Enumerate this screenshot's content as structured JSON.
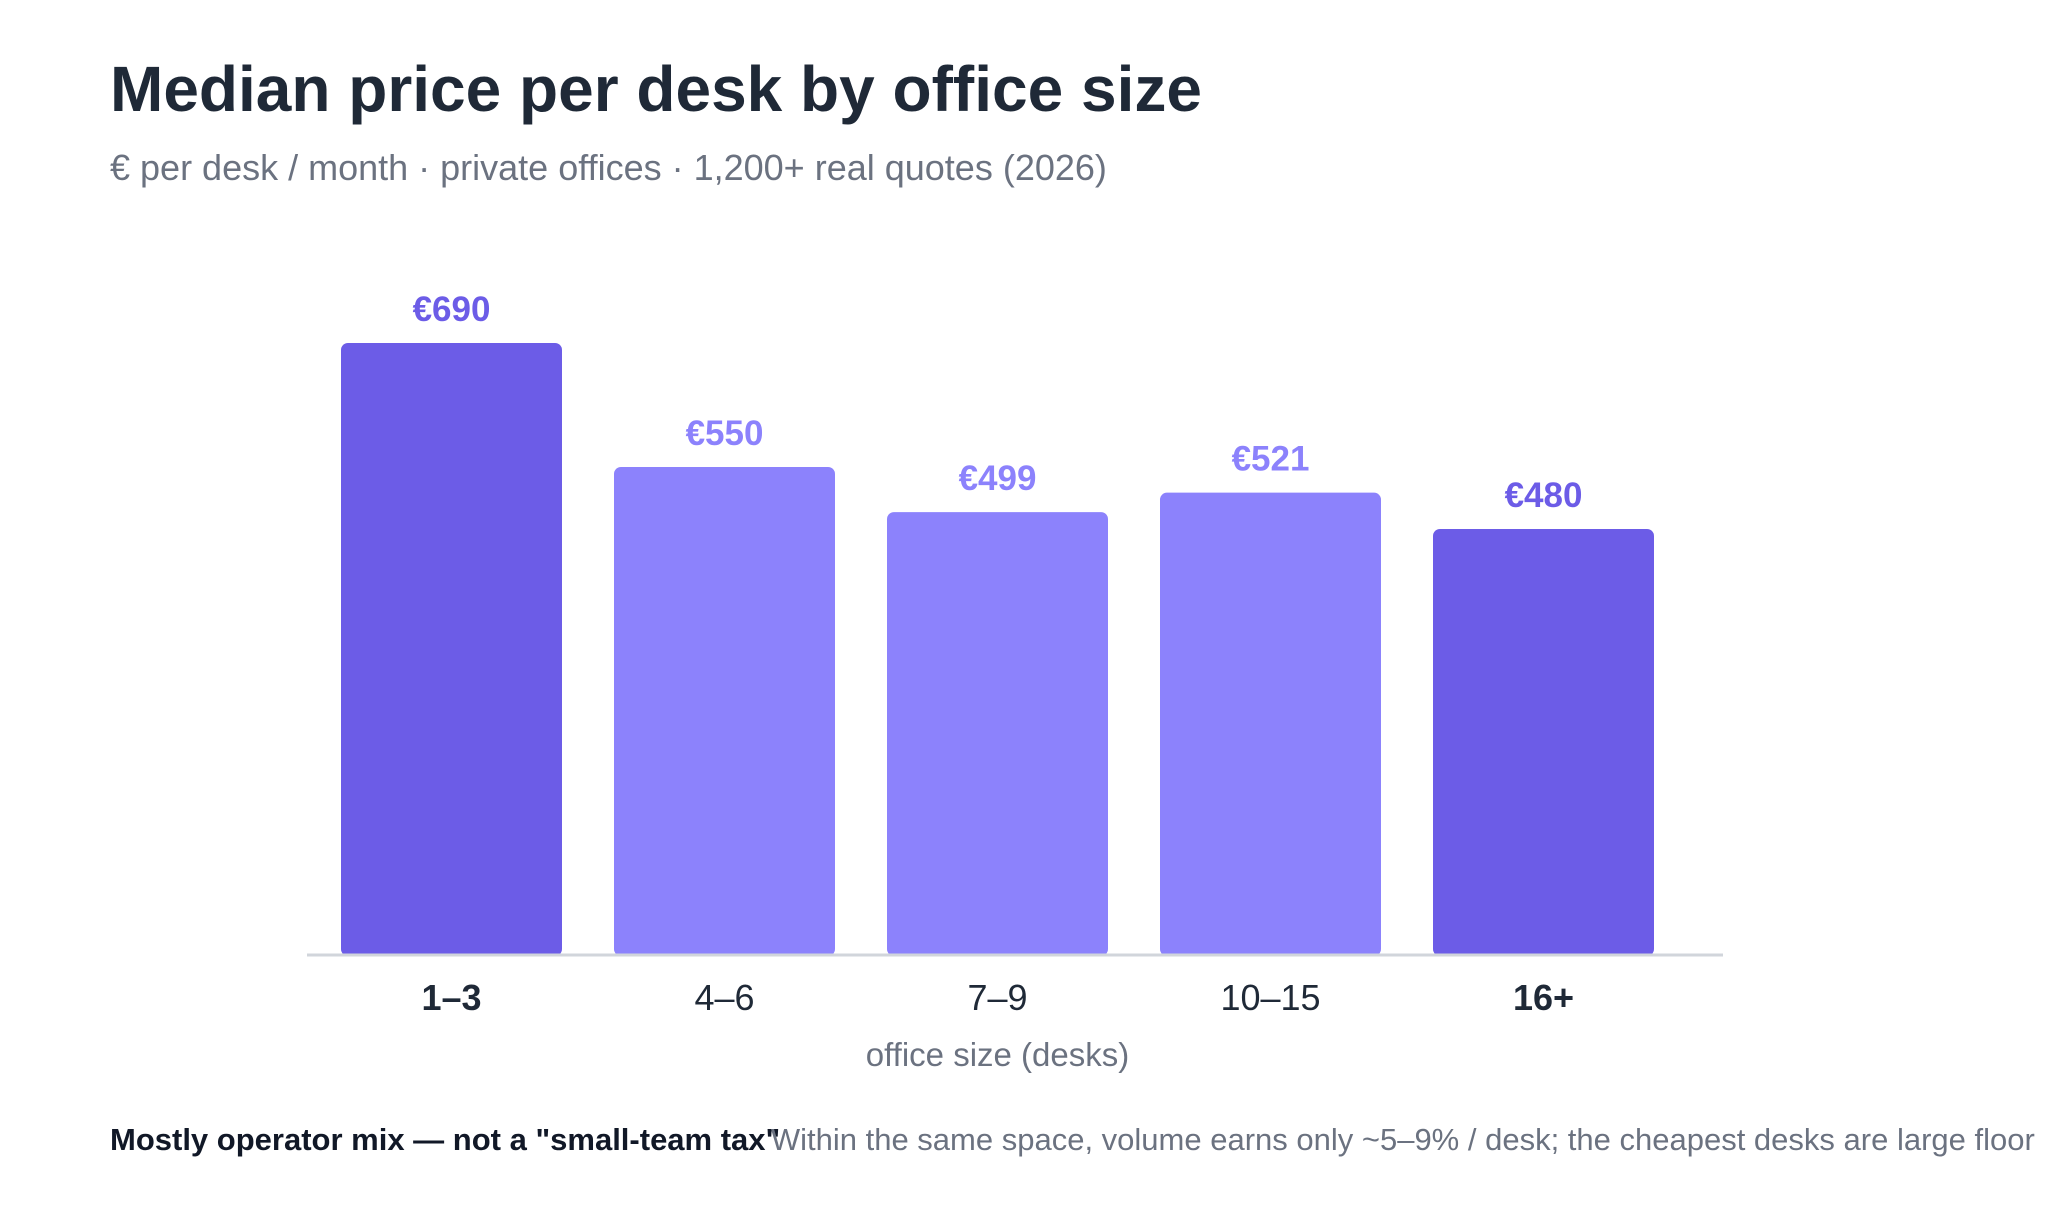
{
  "title": "Median price per desk by office size",
  "subtitle": "€ per desk / month · private offices · 1,200+ real quotes (2026)",
  "footnote": {
    "lead": "Mostly operator mix — not a \"small-team tax\"",
    "body": "Within the same space, volume earns only ~5–9% / desk; the cheapest desks are large floor"
  },
  "colors": {
    "highlight_bar": "#6c5ce7",
    "regular_bar": "#8c82fc",
    "highlight_label": "#6c5ce7",
    "regular_label": "#8c82fc",
    "axis_line": "#d1d5db",
    "tick_text": "#1f2937",
    "axis_title": "#6b7280"
  },
  "chart_data": {
    "type": "bar",
    "title": "Median price per desk by office size",
    "subtitle": "€ per desk / month · private offices · 1,200+ real quotes (2026)",
    "xlabel": "office size (desks)",
    "ylabel": "",
    "categories": [
      "1–3",
      "4–6",
      "7–9",
      "10–15",
      "16+"
    ],
    "values": [
      690,
      550,
      499,
      521,
      480
    ],
    "value_labels": [
      "€690",
      "€550",
      "€499",
      "€521",
      "€480"
    ],
    "highlighted": [
      true,
      false,
      false,
      false,
      true
    ],
    "ylim": [
      0,
      690
    ],
    "grid": false,
    "legend": "none"
  }
}
